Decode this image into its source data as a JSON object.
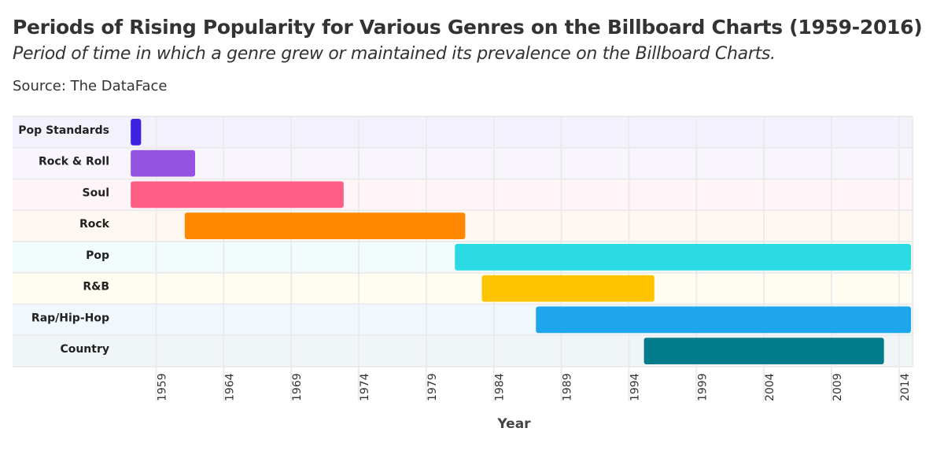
{
  "chart_data": {
    "type": "bar",
    "orientation": "horizontal-range",
    "title": "Periods of Rising Popularity for Various Genres on the Billboard Charts (1959-2016)",
    "subtitle": "Period of time in which a genre grew or maintained its prevalence on the Billboard Charts.",
    "source": "Source: The DataFace",
    "xlabel": "Year",
    "ylabel": "",
    "xlim": [
      1956,
      2015
    ],
    "xticks": [
      1959,
      1964,
      1969,
      1974,
      1979,
      1984,
      1989,
      1994,
      1999,
      2004,
      2009,
      2014
    ],
    "grid": true,
    "categories": [
      "Pop Standards",
      "Rock & Roll",
      "Soul",
      "Rock",
      "Pop",
      "R&B",
      "Rap/Hip-Hop",
      "Country"
    ],
    "ranges": [
      [
        1957,
        1958
      ],
      [
        1957,
        1962
      ],
      [
        1957,
        1973
      ],
      [
        1961,
        1982
      ],
      [
        1981,
        2015
      ],
      [
        1983,
        1996
      ],
      [
        1987,
        2015
      ],
      [
        1995,
        2013
      ]
    ],
    "colors": [
      "#3e22e2",
      "#9553e1",
      "#ff5f84",
      "#ff8800",
      "#2adbe4",
      "#ffc400",
      "#1ea6ec",
      "#007b8c"
    ],
    "row_tints": [
      "#f3f2fc",
      "#f8f5fc",
      "#fff5f8",
      "#fff8f2",
      "#f2fcfd",
      "#fffcf2",
      "#f1f8fd",
      "#f0f6f8"
    ]
  }
}
